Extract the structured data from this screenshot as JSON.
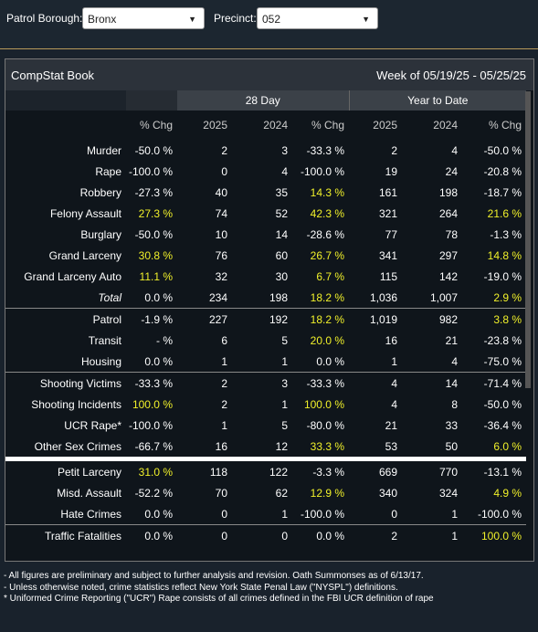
{
  "filters": [
    {
      "label": "Patrol Borough:",
      "value": "Bronx"
    },
    {
      "label": "Precinct:",
      "value": "052"
    }
  ],
  "panel": {
    "title": "CompStat Book",
    "week": "Week of 05/19/25 - 05/25/25"
  },
  "table": {
    "group_headers": [
      "28 Day",
      "Year to Date"
    ],
    "columns": [
      "% Chg",
      "2025",
      "2024",
      "% Chg",
      "2025",
      "2024",
      "% Chg"
    ],
    "sections": [
      [
        [
          "Murder",
          "-50.0 %",
          "2",
          "3",
          "-33.3 %",
          "2",
          "4",
          "-50.0 %"
        ],
        [
          "Rape",
          "-100.0 %",
          "0",
          "4",
          "-100.0 %",
          "19",
          "24",
          "-20.8 %"
        ],
        [
          "Robbery",
          "-27.3 %",
          "40",
          "35",
          "14.3 %",
          "161",
          "198",
          "-18.7 %"
        ],
        [
          "Felony Assault",
          "27.3 %",
          "74",
          "52",
          "42.3 %",
          "321",
          "264",
          "21.6 %"
        ],
        [
          "Burglary",
          "-50.0 %",
          "10",
          "14",
          "-28.6 %",
          "77",
          "78",
          "-1.3 %"
        ],
        [
          "Grand Larceny",
          "30.8 %",
          "76",
          "60",
          "26.7 %",
          "341",
          "297",
          "14.8 %"
        ],
        [
          "Grand Larceny Auto",
          "11.1 %",
          "32",
          "30",
          "6.7 %",
          "115",
          "142",
          "-19.0 %"
        ],
        [
          "Total",
          "0.0 %",
          "234",
          "198",
          "18.2 %",
          "1,036",
          "1,007",
          "2.9 %"
        ]
      ],
      [
        [
          "Patrol",
          "-1.9 %",
          "227",
          "192",
          "18.2 %",
          "1,019",
          "982",
          "3.8 %"
        ],
        [
          "Transit",
          "- %",
          "6",
          "5",
          "20.0 %",
          "16",
          "21",
          "-23.8 %"
        ],
        [
          "Housing",
          "0.0 %",
          "1",
          "1",
          "0.0 %",
          "1",
          "4",
          "-75.0 %"
        ]
      ],
      [
        [
          "Shooting Victims",
          "-33.3 %",
          "2",
          "3",
          "-33.3 %",
          "4",
          "14",
          "-71.4 %"
        ],
        [
          "Shooting Incidents",
          "100.0 %",
          "2",
          "1",
          "100.0 %",
          "4",
          "8",
          "-50.0 %"
        ],
        [
          "UCR Rape*",
          "-100.0 %",
          "1",
          "5",
          "-80.0 %",
          "21",
          "33",
          "-36.4 %"
        ],
        [
          "Other Sex Crimes",
          "-66.7 %",
          "16",
          "12",
          "33.3 %",
          "53",
          "50",
          "6.0 %"
        ]
      ],
      [
        [
          "Petit Larceny",
          "31.0 %",
          "118",
          "122",
          "-3.3 %",
          "669",
          "770",
          "-13.1 %"
        ],
        [
          "Misd. Assault",
          "-52.2 %",
          "70",
          "62",
          "12.9 %",
          "340",
          "324",
          "4.9 %"
        ],
        [
          "Hate Crimes",
          "0.0 %",
          "0",
          "1",
          "-100.0 %",
          "0",
          "1",
          "-100.0 %"
        ]
      ],
      [
        [
          "Traffic Fatalities",
          "0.0 %",
          "0",
          "0",
          "0.0 %",
          "2",
          "1",
          "100.0 %"
        ]
      ]
    ]
  },
  "footnotes": [
    "- All figures are preliminary and subject to further analysis and revision. Oath Summonses as of 6/13/17.",
    "- Unless otherwise noted, crime statistics reflect New York State Penal Law (\"NYSPL\") definitions.",
    "* Uniformed Crime Reporting (\"UCR\") Rape consists of all crimes defined in the FBI UCR definition of rape"
  ]
}
